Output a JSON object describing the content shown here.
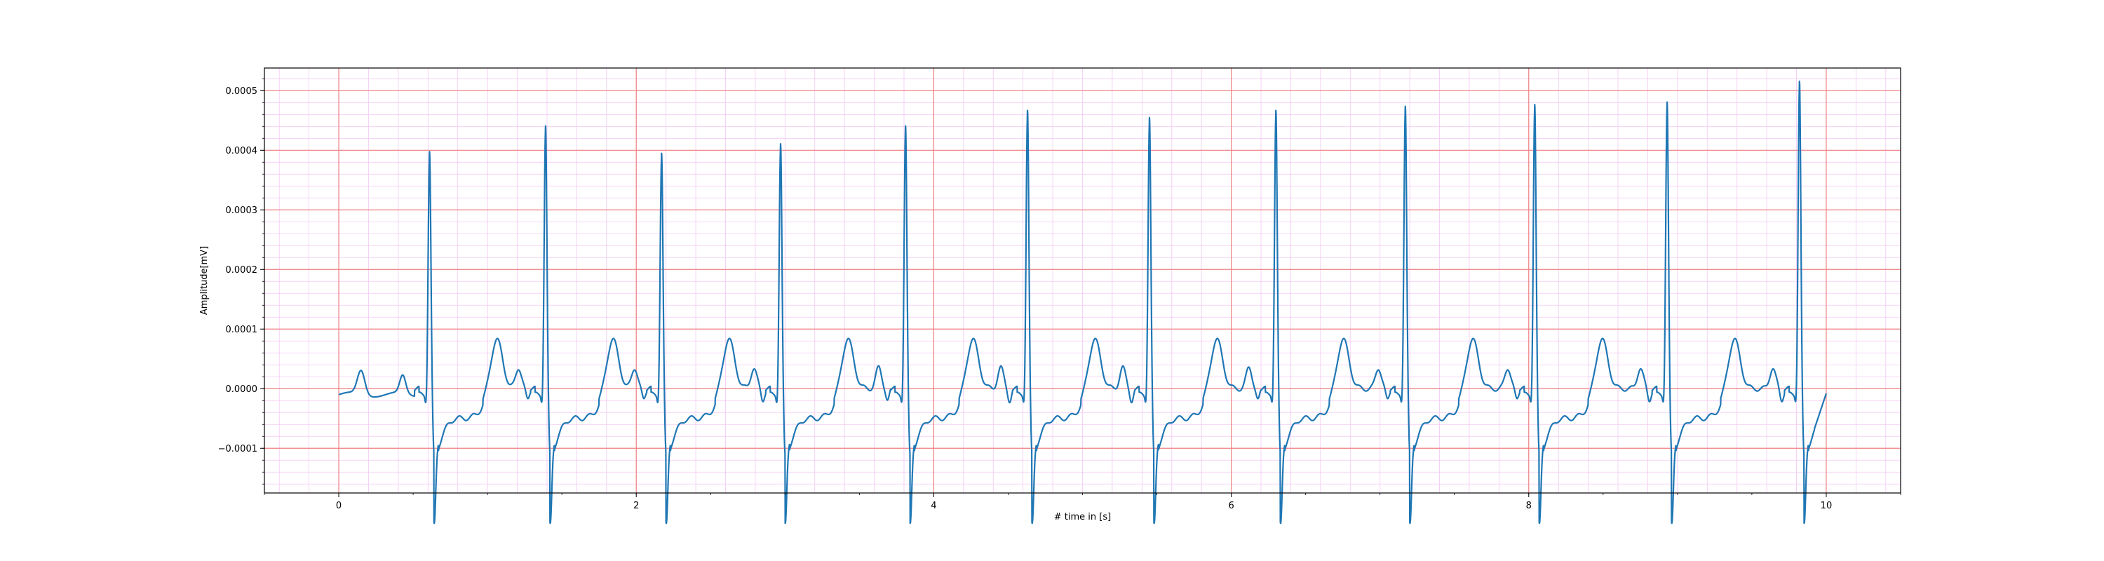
{
  "chart_data": {
    "type": "line",
    "title": "",
    "xlabel": "# time in [s]",
    "ylabel": "Amplitude[mV]",
    "xlim": [
      -0.5,
      10.5
    ],
    "ylim": [
      -0.000175,
      0.000538
    ],
    "x_ticks": [
      0,
      2,
      4,
      6,
      8,
      10
    ],
    "x_tick_labels": [
      "0",
      "2",
      "4",
      "6",
      "8",
      "10"
    ],
    "y_ticks": [
      -0.0001,
      0.0,
      0.0001,
      0.0002,
      0.0003,
      0.0004,
      0.0005
    ],
    "y_tick_labels": [
      "−0.0001",
      "0.0000",
      "0.0001",
      "0.0002",
      "0.0003",
      "0.0004",
      "0.0005"
    ],
    "grid": "on",
    "colors": {
      "series": "#1f77b4",
      "major_grid": "#f08080",
      "minor_grid": "#f4c8f4"
    },
    "series": [
      {
        "name": "",
        "r_peaks_x": [
          0.61,
          1.39,
          2.17,
          2.97,
          3.81,
          4.63,
          5.45,
          6.3,
          7.17,
          8.04,
          8.93,
          9.82
        ],
        "r_peaks_y": [
          0.000387,
          0.00043,
          0.000384,
          0.0004,
          0.00043,
          0.000456,
          0.000444,
          0.000456,
          0.000463,
          0.000466,
          0.00047,
          0.000505
        ],
        "baseline_start": -1e-05,
        "end_point": [
          10.0,
          -8e-06
        ]
      }
    ]
  }
}
